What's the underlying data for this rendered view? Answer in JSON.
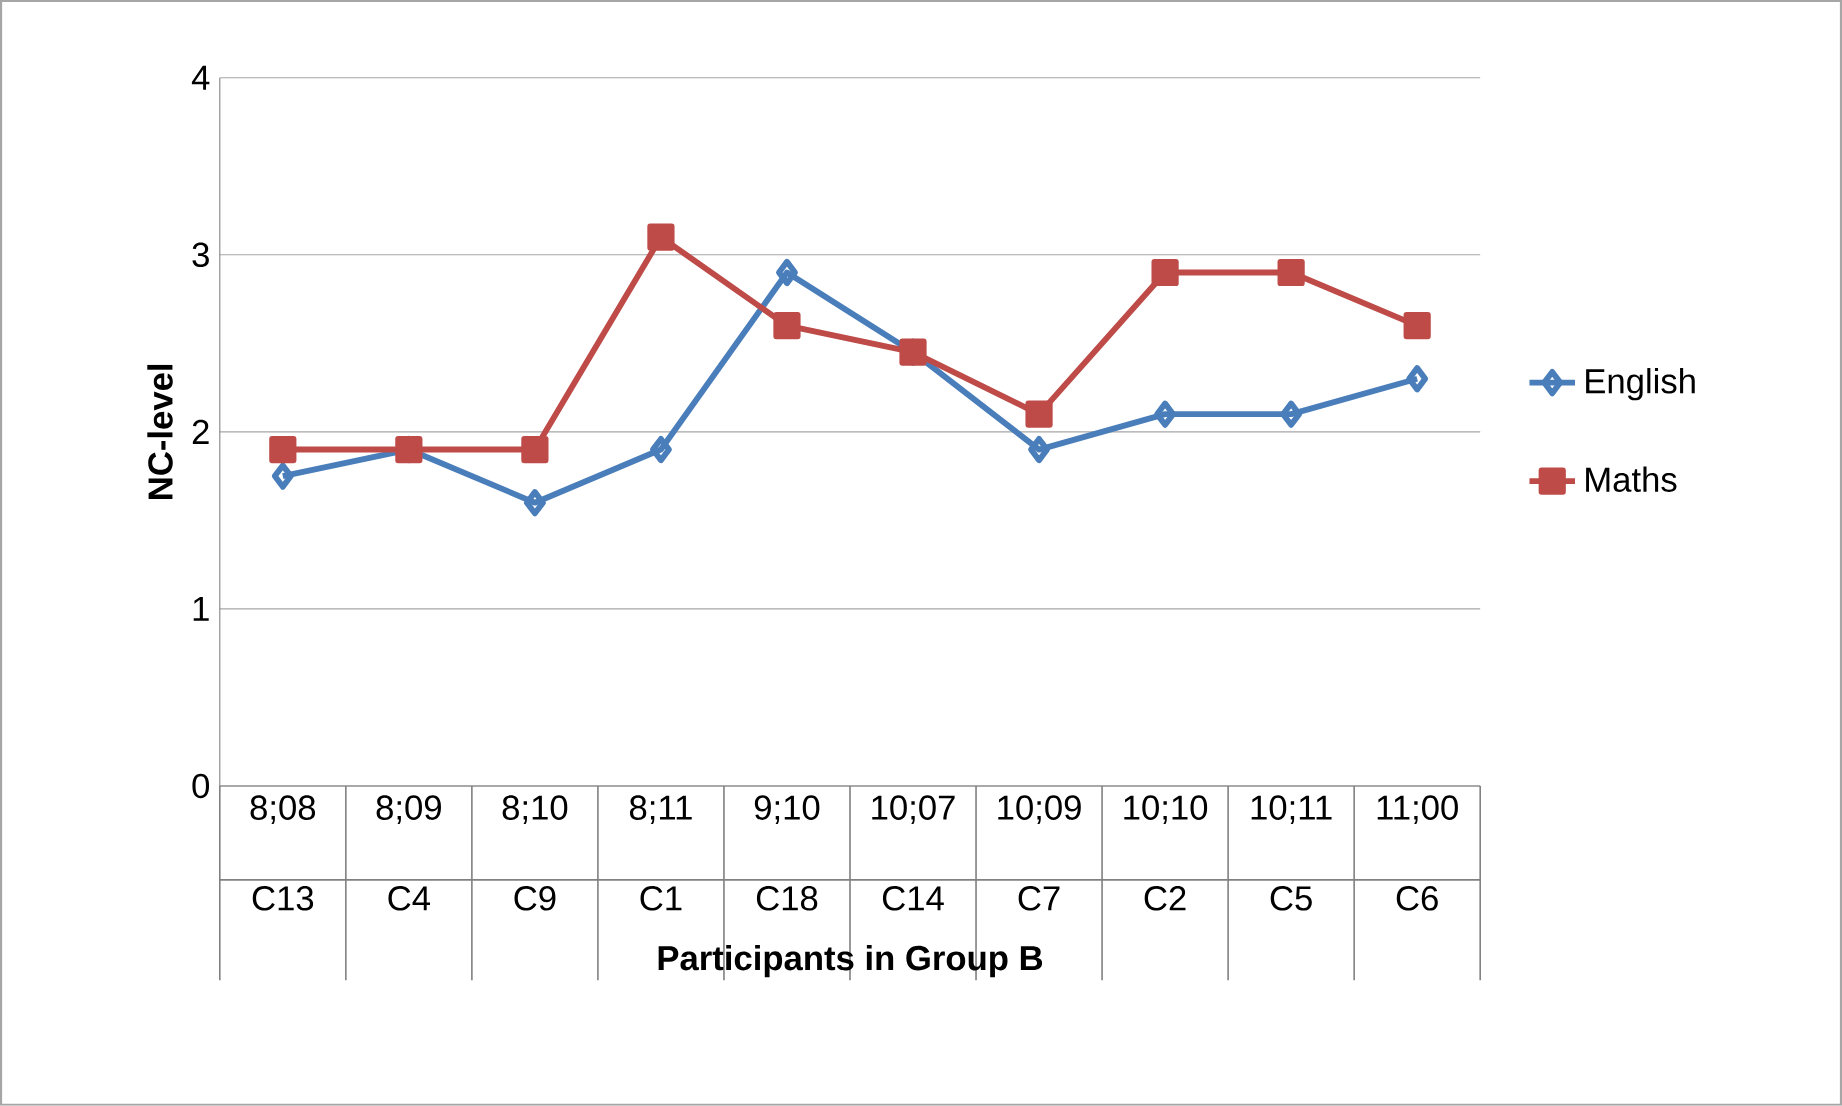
{
  "chart_data": {
    "type": "line",
    "xlabel": "Participants in Group B",
    "ylabel": "NC-level",
    "categories": [
      "8;08 C13",
      "8;09 C4",
      "8;10 C9",
      "8;11 C1",
      "9;10 C18",
      "10;07 C14",
      "10;09 C7",
      "10;10 C2",
      "10;11 C5",
      "11;00 C6"
    ],
    "series": [
      {
        "name": "English",
        "color": "#4a7ebb",
        "marker": "diamond",
        "values": [
          1.75,
          1.9,
          1.6,
          1.9,
          2.9,
          2.45,
          1.9,
          2.1,
          2.1,
          2.3
        ]
      },
      {
        "name": "Maths",
        "color": "#be4b48",
        "marker": "square",
        "values": [
          1.9,
          1.9,
          1.9,
          3.1,
          2.6,
          2.45,
          2.1,
          2.9,
          2.9,
          2.6
        ]
      }
    ],
    "ylim": [
      0,
      4
    ],
    "yticks": [
      0,
      1,
      2,
      3,
      4
    ],
    "grid": "y",
    "legend": "right",
    "line_style": "solid"
  }
}
